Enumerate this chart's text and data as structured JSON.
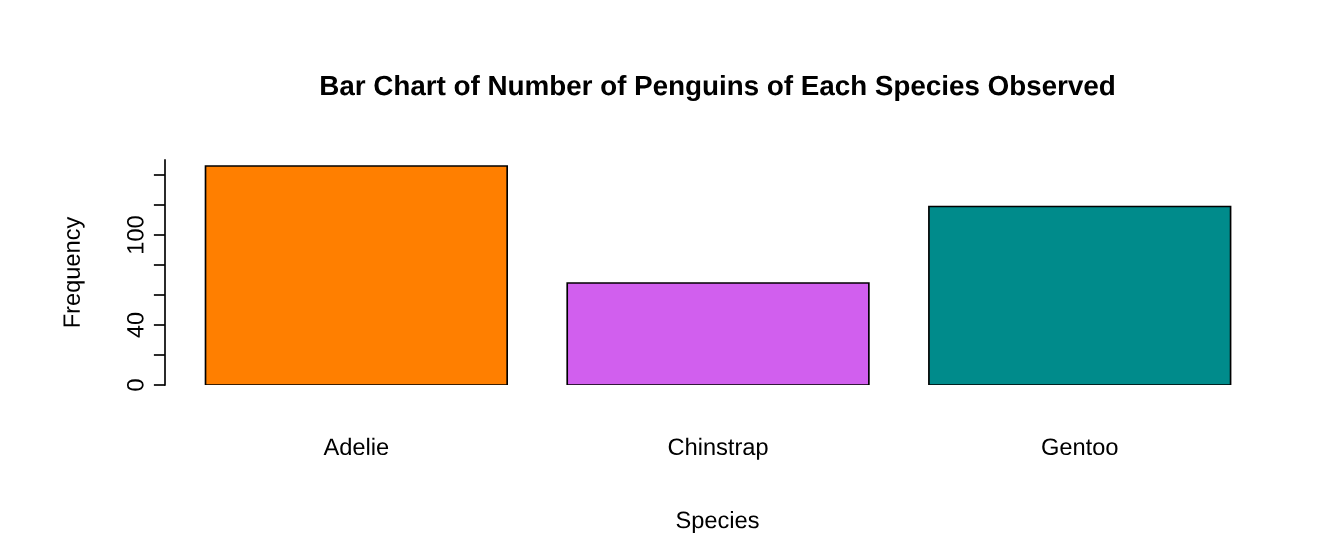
{
  "chart_data": {
    "type": "bar",
    "title": "Bar Chart of Number of Penguins of Each Species Observed",
    "xlabel": "Species",
    "ylabel": "Frequency",
    "categories": [
      "Adelie",
      "Chinstrap",
      "Gentoo"
    ],
    "values": [
      146,
      68,
      119
    ],
    "colors": [
      "#ff7f00",
      "#d15fee",
      "#008b8b"
    ],
    "ylim": [
      0,
      150
    ],
    "yticks": [
      0,
      {
        "value": 20,
        "label": null
      },
      40,
      {
        "value": 60,
        "label": null
      },
      {
        "value": 80,
        "label": null
      },
      100,
      {
        "value": 120,
        "label": null
      },
      {
        "value": 140,
        "label": null
      }
    ],
    "grid": false
  }
}
